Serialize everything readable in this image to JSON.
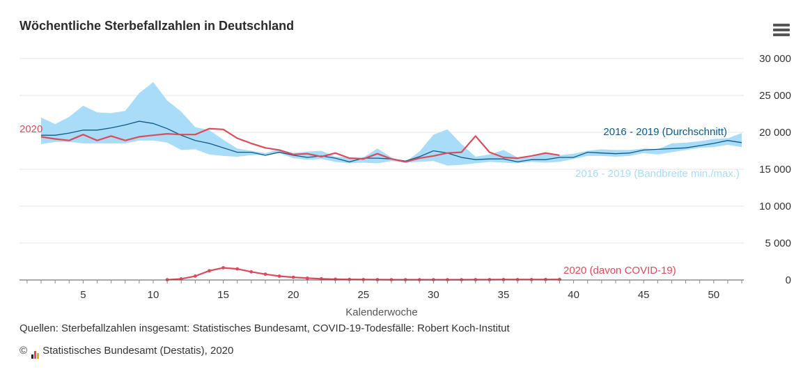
{
  "header": {
    "title": "Wöchentliche Sterbefallzahlen in Deutschland",
    "menu_icon": "hamburger-menu-icon"
  },
  "footer": {
    "sources": "Quellen: Sterbefallzahlen insgesamt: Statistisches Bundesamt, COVID-19-Todesfälle: Robert Koch-Institut",
    "copyright_symbol": "©",
    "copyright": "Statistisches Bundesamt (Destatis), 2020",
    "logo_icon": "destatis-logo-icon"
  },
  "colors": {
    "band": "#a8dcf7",
    "average": "#0d5a86",
    "series_2020": "#dc4a5c",
    "grid": "#e6e6e6",
    "axis": "#555555"
  },
  "chart_data": {
    "type": "line",
    "title": "Wöchentliche Sterbefallzahlen in Deutschland",
    "xlabel": "Kalenderwoche",
    "ylabel": "",
    "xlim": [
      1,
      52
    ],
    "ylim": [
      0,
      30000
    ],
    "x_ticks": [
      5,
      10,
      15,
      20,
      25,
      30,
      35,
      40,
      45,
      50
    ],
    "x_tick_labels": [
      "5",
      "10",
      "15",
      "20",
      "25",
      "30",
      "35",
      "40",
      "45",
      "50"
    ],
    "y_ticks": [
      0,
      5000,
      10000,
      15000,
      20000,
      25000,
      30000
    ],
    "y_tick_labels": [
      "0",
      "5 000",
      "10 000",
      "15 000",
      "20 000",
      "25 000",
      "30 000"
    ],
    "grid": true,
    "legend": "inline labels",
    "band": {
      "name": "2016 - 2019 (Bandbreite min./max.)",
      "x": [
        2,
        3,
        4,
        5,
        6,
        7,
        8,
        9,
        10,
        11,
        12,
        13,
        14,
        15,
        16,
        17,
        18,
        19,
        20,
        21,
        22,
        23,
        24,
        25,
        26,
        27,
        28,
        29,
        30,
        31,
        32,
        33,
        34,
        35,
        36,
        37,
        38,
        39,
        40,
        41,
        42,
        43,
        44,
        45,
        46,
        47,
        48,
        49,
        50,
        51,
        52
      ],
      "min": [
        18400,
        18700,
        18700,
        18500,
        18500,
        18500,
        18500,
        18900,
        18900,
        18600,
        17600,
        17700,
        17000,
        16800,
        16700,
        16900,
        17000,
        17200,
        16500,
        16300,
        16400,
        16000,
        15800,
        15900,
        15800,
        16100,
        15900,
        16000,
        16100,
        15500,
        15600,
        15800,
        16000,
        15900,
        15800,
        16000,
        15900,
        16000,
        16400,
        16800,
        16800,
        16700,
        16800,
        17200,
        17000,
        17300,
        17600,
        17900,
        18000,
        18300,
        18000
      ],
      "max": [
        22000,
        21100,
        22100,
        23600,
        22700,
        22600,
        22900,
        25300,
        26800,
        24300,
        22800,
        20700,
        20300,
        19000,
        17800,
        17500,
        17200,
        17700,
        17200,
        17400,
        17500,
        16700,
        16600,
        16600,
        17800,
        16600,
        16000,
        17400,
        19700,
        20400,
        18400,
        16700,
        17000,
        17600,
        16600,
        16600,
        17300,
        16900,
        17100,
        17500,
        17700,
        17600,
        17600,
        17800,
        17700,
        18500,
        18600,
        18800,
        19100,
        19200,
        19900
      ]
    },
    "series": [
      {
        "name": "2016 - 2019 (Durchschnitt)",
        "x": [
          2,
          3,
          4,
          5,
          6,
          7,
          8,
          9,
          10,
          11,
          12,
          13,
          14,
          15,
          16,
          17,
          18,
          19,
          20,
          21,
          22,
          23,
          24,
          25,
          26,
          27,
          28,
          29,
          30,
          31,
          32,
          33,
          34,
          35,
          36,
          37,
          38,
          39,
          40,
          41,
          42,
          43,
          44,
          45,
          46,
          47,
          48,
          49,
          50,
          51,
          52
        ],
        "values": [
          19600,
          19600,
          19900,
          20300,
          20300,
          20600,
          21000,
          21500,
          21200,
          20500,
          19600,
          18900,
          18500,
          17900,
          17300,
          17300,
          16900,
          17300,
          16900,
          16600,
          16800,
          16500,
          16000,
          16500,
          16500,
          16400,
          16100,
          16700,
          17500,
          17200,
          16600,
          16300,
          16400,
          16400,
          16000,
          16300,
          16300,
          16600,
          16600,
          17300,
          17200,
          17100,
          17200,
          17600,
          17700,
          17800,
          17900,
          18200,
          18500,
          18900,
          18600
        ]
      },
      {
        "name": "2020",
        "x": [
          2,
          3,
          4,
          5,
          6,
          7,
          8,
          9,
          10,
          11,
          12,
          13,
          14,
          15,
          16,
          17,
          18,
          19,
          20,
          21,
          22,
          23,
          24,
          25,
          26,
          27,
          28,
          29,
          30,
          31,
          32,
          33,
          34,
          35,
          36,
          37,
          38,
          39
        ],
        "values": [
          19400,
          19100,
          18900,
          19700,
          18900,
          19500,
          18900,
          19400,
          19600,
          19800,
          19700,
          19700,
          20500,
          20400,
          19200,
          18500,
          17900,
          17600,
          17000,
          17100,
          16700,
          17200,
          16500,
          16400,
          17100,
          16400,
          16000,
          16500,
          16800,
          17200,
          17300,
          19500,
          17300,
          16600,
          16500,
          16800,
          17200,
          16900
        ]
      },
      {
        "name": "2020 (davon COVID-19)",
        "x": [
          11,
          12,
          13,
          14,
          15,
          16,
          17,
          18,
          19,
          20,
          21,
          22,
          23,
          24,
          25,
          26,
          27,
          28,
          29,
          30,
          31,
          32,
          33,
          34,
          35,
          36,
          37,
          38,
          39
        ],
        "values": [
          30,
          150,
          530,
          1250,
          1650,
          1500,
          1100,
          780,
          520,
          370,
          250,
          160,
          100,
          80,
          60,
          50,
          40,
          35,
          40,
          40,
          40,
          40,
          45,
          50,
          55,
          60,
          60,
          70,
          80
        ]
      }
    ]
  }
}
